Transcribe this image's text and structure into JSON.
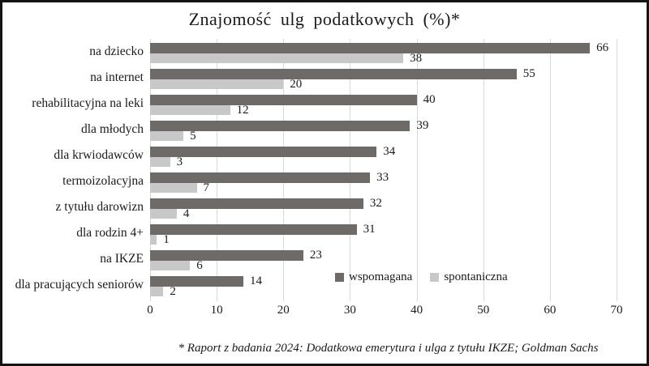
{
  "chart_data": {
    "type": "bar",
    "orientation": "horizontal",
    "title": "Znajomość ulg podatkowych (%)*",
    "categories": [
      "na dziecko",
      "na internet",
      "rehabilitacyjna na leki",
      "dla młodych",
      "dla krwiodawców",
      "termoizolacyjna",
      "z tytułu darowizn",
      "dla rodzin 4+",
      "na IKZE",
      "dla pracujących seniorów"
    ],
    "series": [
      {
        "name": "wspomagana",
        "color": "#6e6a68",
        "values": [
          66,
          55,
          40,
          39,
          34,
          33,
          32,
          31,
          23,
          14
        ]
      },
      {
        "name": "spontaniczna",
        "color": "#c8c8c8",
        "values": [
          38,
          20,
          12,
          5,
          3,
          7,
          4,
          1,
          6,
          2
        ]
      }
    ],
    "xlim": [
      0,
      70
    ],
    "xticks": [
      0,
      10,
      20,
      30,
      40,
      50,
      60,
      70
    ],
    "grid": true,
    "gridline_color": "#d9d9d9",
    "legend_position": "inside-bottom-right",
    "footnote": "* Raport z badania 2024: Dodatkowa emerytura i ulga z tytułu IKZE; Goldman Sachs"
  }
}
